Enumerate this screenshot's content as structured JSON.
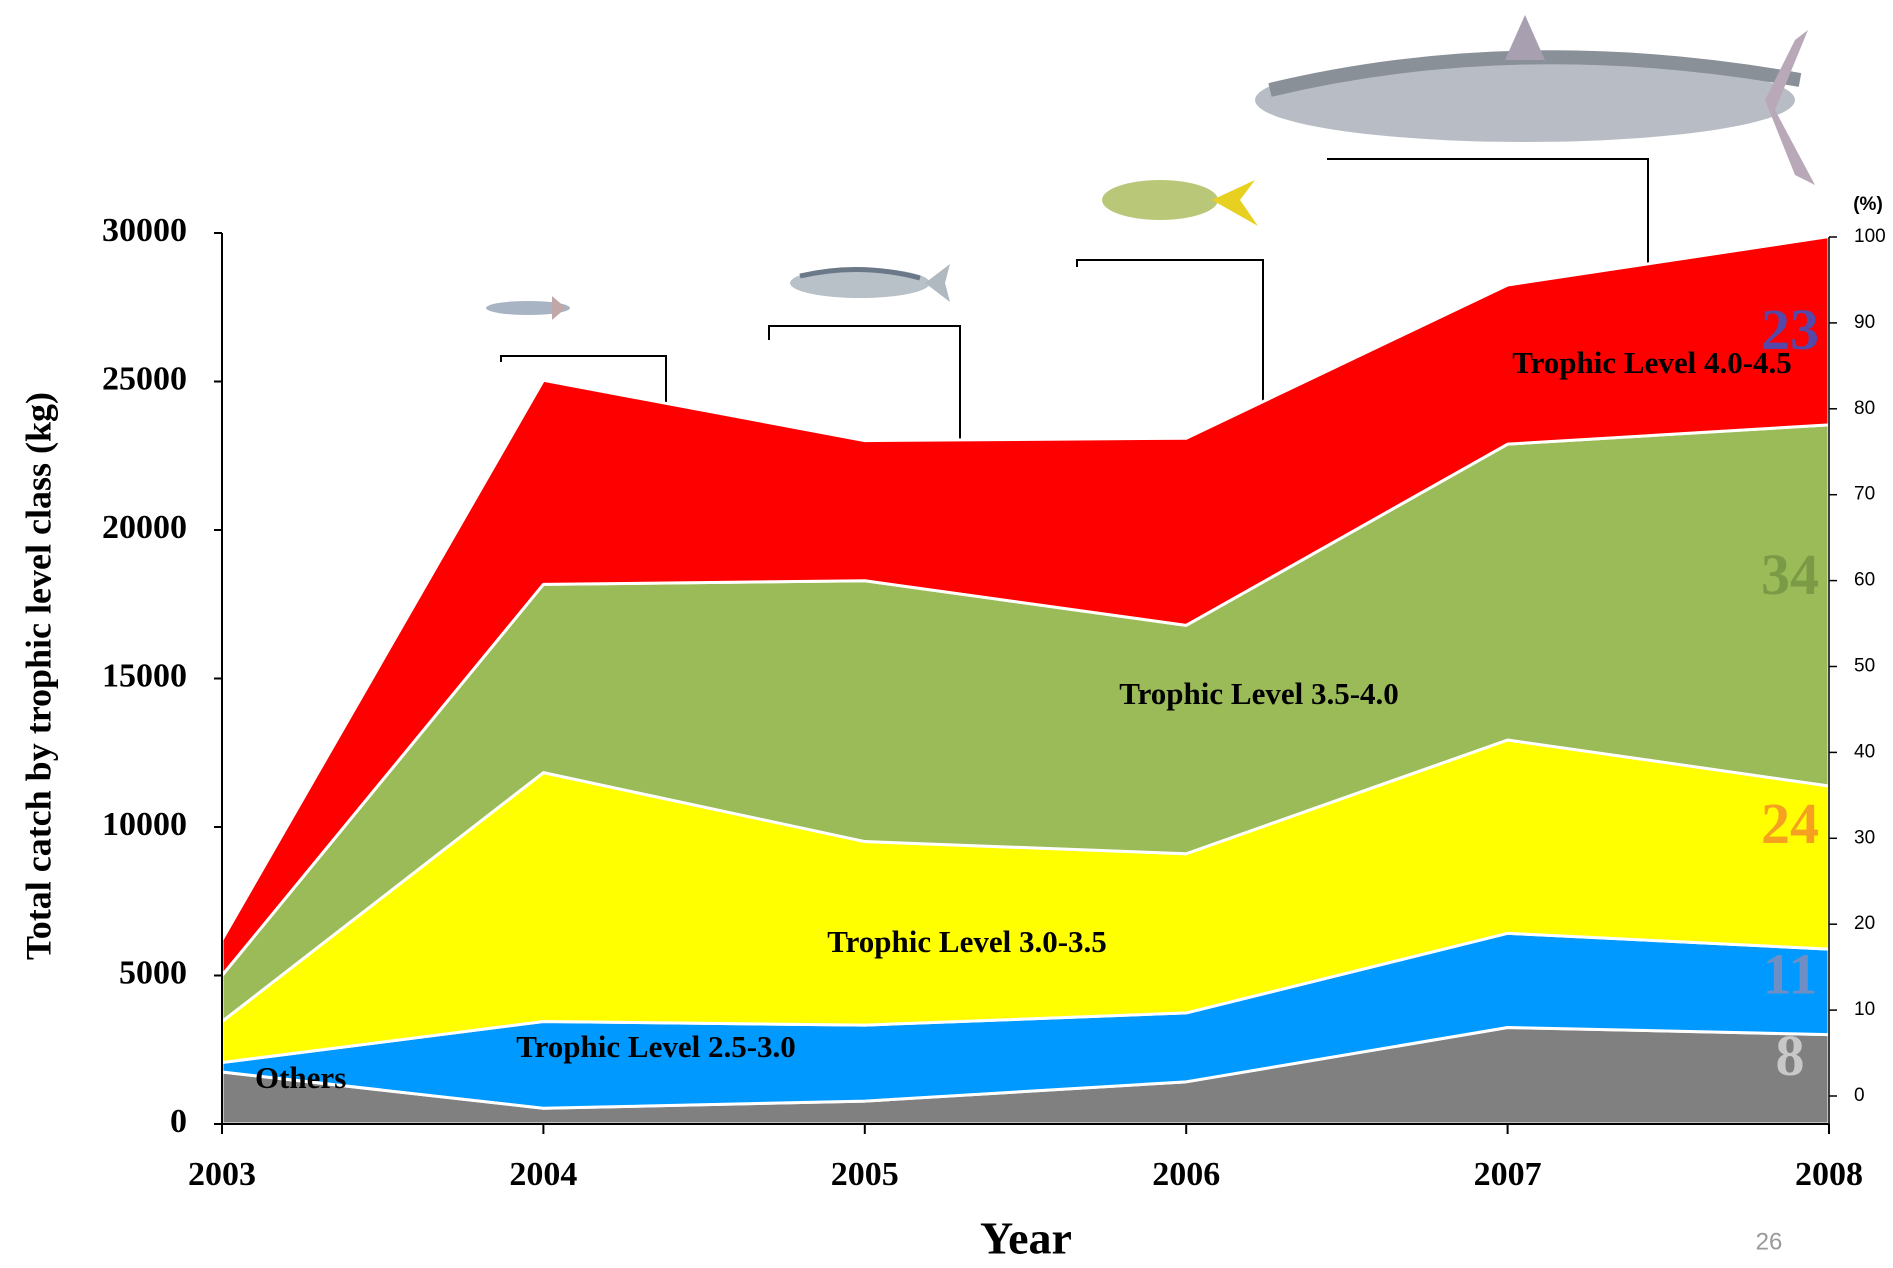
{
  "chart_data": {
    "type": "stacked_area",
    "y_axis_label": "Total  catch by trophic level class (kg)",
    "x_axis_label": "Year",
    "y2_axis_label": "(%)",
    "slide_number": "26",
    "x": [
      2003,
      2004,
      2005,
      2006,
      2007,
      2008
    ],
    "xlim": [
      2003,
      2008
    ],
    "xticks": [
      2003,
      2004,
      2005,
      2006,
      2007,
      2008
    ],
    "ylim": [
      0,
      30000
    ],
    "yticks": [
      0,
      5000,
      10000,
      15000,
      20000,
      25000,
      30000
    ],
    "y2lim": [
      0,
      100
    ],
    "y2ticks": [
      0,
      10,
      20,
      30,
      40,
      50,
      60,
      70,
      80,
      90,
      100
    ],
    "series": [
      {
        "name": "Others",
        "color": "#808080",
        "values": [
          1750,
          530,
          770,
          1420,
          3250,
          3010
        ],
        "share": 8,
        "share_color": "#c8c8c8"
      },
      {
        "name": "Trophic Level 2.5-3.0",
        "color": "#0099ff",
        "values": [
          320,
          2920,
          2560,
          2320,
          3170,
          2880
        ],
        "share": 11,
        "share_color": "#6f8fc4"
      },
      {
        "name": "Trophic Level 3.0-3.5",
        "color": "#ffff00",
        "values": [
          1380,
          8380,
          6180,
          5360,
          6510,
          5490
        ],
        "share": 24,
        "share_color": "#f5a020"
      },
      {
        "name": "Trophic Level 3.5-4.0",
        "color": "#9bbb59",
        "values": [
          1550,
          6340,
          8780,
          7690,
          9960,
          12160
        ],
        "share": 34,
        "share_color": "#7a9a45"
      },
      {
        "name": "Trophic Level 4.0-4.5",
        "color": "#ff0000",
        "values": [
          1200,
          6870,
          4720,
          6300,
          5360,
          6340
        ],
        "share": 23,
        "share_color": "#5548a8"
      }
    ]
  }
}
